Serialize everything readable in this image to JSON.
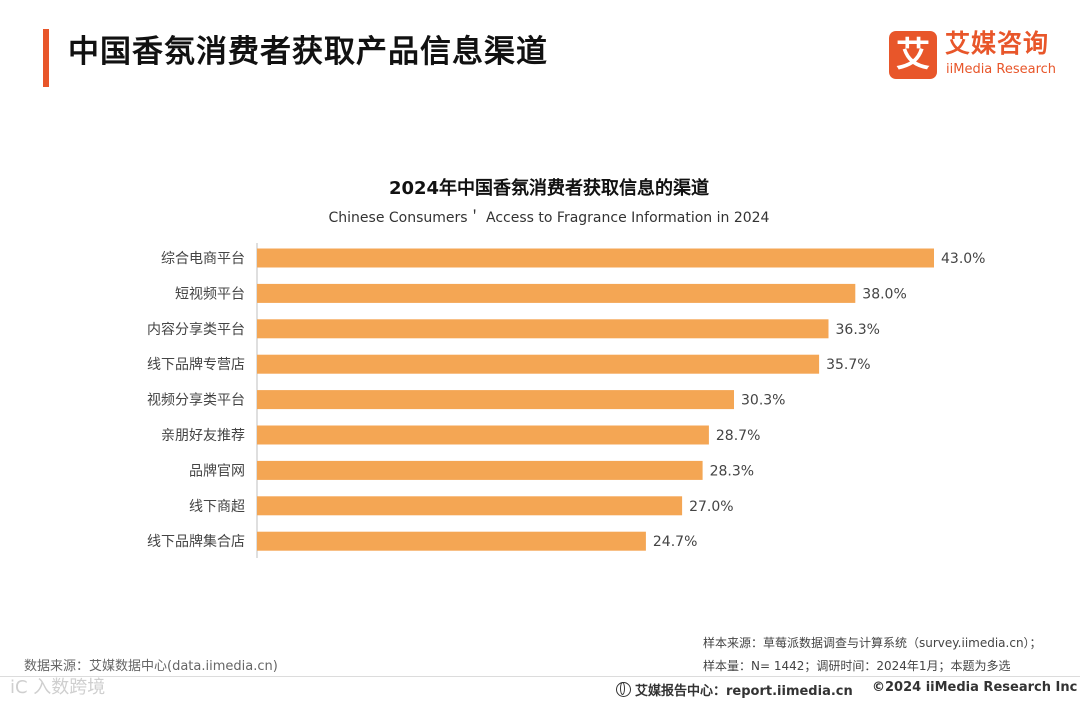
{
  "header": {
    "title": "中国香氛消费者获取产品信息渠道"
  },
  "logo": {
    "mark": "艾",
    "cn": "艾媒咨询",
    "en": "iiMedia Research"
  },
  "chart_data": {
    "type": "bar",
    "orientation": "horizontal",
    "title": "2024年中国香氛消费者获取信息的渠道",
    "subtitle": "Chinese Consumers＇ Access to Fragrance Information in 2024",
    "categories": [
      "综合电商平台",
      "短视频平台",
      "内容分享类平台",
      "线下品牌专营店",
      "视频分享类平台",
      "亲朋好友推荐",
      "品牌官网",
      "线下商超",
      "线下品牌集合店"
    ],
    "values": [
      43.0,
      38.0,
      36.3,
      35.7,
      30.3,
      28.7,
      28.3,
      27.0,
      24.7
    ],
    "value_labels": [
      "43.0%",
      "38.0%",
      "36.3%",
      "35.7%",
      "30.3%",
      "28.7%",
      "28.3%",
      "27.0%",
      "24.7%"
    ],
    "unit": "%",
    "xlim": [
      0,
      43
    ],
    "bar_color": "#f4a654",
    "grid": false,
    "legend": "none"
  },
  "notes": {
    "sample_source": "样本来源：草莓派数据调查与计算系统（survey.iimedia.cn）；",
    "sample_size": "样本量：N= 1442；调研时间：2024年1月；本题为多选"
  },
  "footer": {
    "data_source": "数据来源：艾媒数据中心(data.iimedia.cn)",
    "watermark": "iC  入数跨境",
    "report_center": "艾媒报告中心：report.iimedia.cn",
    "copyright": "©2024  iiMedia Research  Inc"
  },
  "colors": {
    "accent": "#e8562a",
    "bar": "#f4a654"
  }
}
